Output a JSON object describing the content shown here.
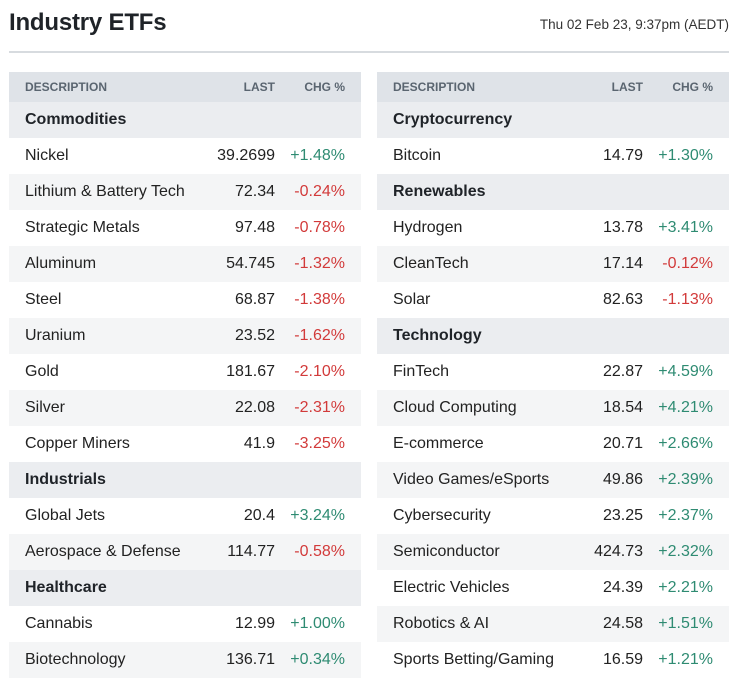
{
  "header": {
    "title": "Industry ETFs",
    "timestamp": "Thu 02 Feb 23, 9:37pm (AEDT)"
  },
  "columns": {
    "description": "DESCRIPTION",
    "last": "LAST",
    "chg": "CHG %"
  },
  "colors": {
    "up": "#2e8b72",
    "down": "#d23a3a",
    "header_bg": "#dfe3e8"
  },
  "left": {
    "commodities": {
      "name": "Commodities",
      "rows": [
        {
          "name": "Nickel",
          "last": "39.2699",
          "chg": "+1.48%"
        },
        {
          "name": "Lithium & Battery Tech",
          "last": "72.34",
          "chg": "-0.24%"
        },
        {
          "name": "Strategic Metals",
          "last": "97.48",
          "chg": "-0.78%"
        },
        {
          "name": "Aluminum",
          "last": "54.745",
          "chg": "-1.32%"
        },
        {
          "name": "Steel",
          "last": "68.87",
          "chg": "-1.38%"
        },
        {
          "name": "Uranium",
          "last": "23.52",
          "chg": "-1.62%"
        },
        {
          "name": "Gold",
          "last": "181.67",
          "chg": "-2.10%"
        },
        {
          "name": "Silver",
          "last": "22.08",
          "chg": "-2.31%"
        },
        {
          "name": "Copper Miners",
          "last": "41.9",
          "chg": "-3.25%"
        }
      ]
    },
    "industrials": {
      "name": "Industrials",
      "rows": [
        {
          "name": "Global Jets",
          "last": "20.4",
          "chg": "+3.24%"
        },
        {
          "name": "Aerospace & Defense",
          "last": "114.77",
          "chg": "-0.58%"
        }
      ]
    },
    "healthcare": {
      "name": "Healthcare",
      "rows": [
        {
          "name": "Cannabis",
          "last": "12.99",
          "chg": "+1.00%"
        },
        {
          "name": "Biotechnology",
          "last": "136.71",
          "chg": "+0.34%"
        }
      ]
    }
  },
  "right": {
    "crypto": {
      "name": "Cryptocurrency",
      "rows": [
        {
          "name": "Bitcoin",
          "last": "14.79",
          "chg": "+1.30%"
        }
      ]
    },
    "renewables": {
      "name": "Renewables",
      "rows": [
        {
          "name": "Hydrogen",
          "last": "13.78",
          "chg": "+3.41%"
        },
        {
          "name": "CleanTech",
          "last": "17.14",
          "chg": "-0.12%"
        },
        {
          "name": "Solar",
          "last": "82.63",
          "chg": "-1.13%"
        }
      ]
    },
    "technology": {
      "name": "Technology",
      "rows": [
        {
          "name": "FinTech",
          "last": "22.87",
          "chg": "+4.59%"
        },
        {
          "name": "Cloud Computing",
          "last": "18.54",
          "chg": "+4.21%"
        },
        {
          "name": "E-commerce",
          "last": "20.71",
          "chg": "+2.66%"
        },
        {
          "name": "Video Games/eSports",
          "last": "49.86",
          "chg": "+2.39%"
        },
        {
          "name": "Cybersecurity",
          "last": "23.25",
          "chg": "+2.37%"
        },
        {
          "name": "Semiconductor",
          "last": "424.73",
          "chg": "+2.32%"
        },
        {
          "name": "Electric Vehicles",
          "last": "24.39",
          "chg": "+2.21%"
        },
        {
          "name": "Robotics & AI",
          "last": "24.58",
          "chg": "+1.51%"
        },
        {
          "name": "Sports Betting/Gaming",
          "last": "16.59",
          "chg": "+1.21%"
        }
      ]
    }
  }
}
